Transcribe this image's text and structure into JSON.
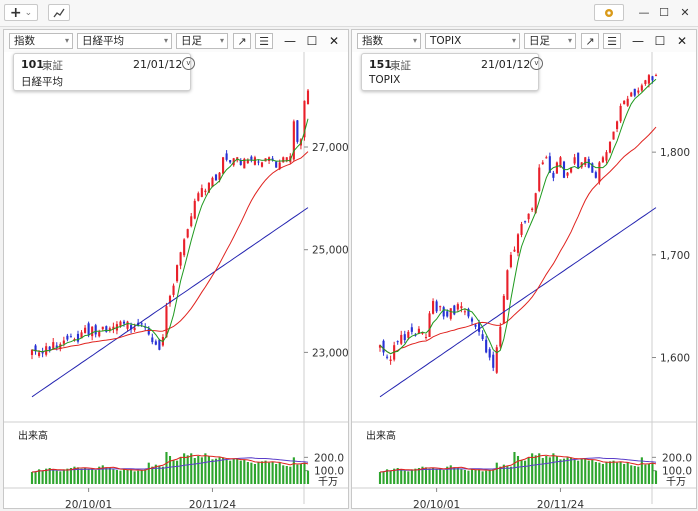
{
  "toolbar": {
    "add_label": "+",
    "add_arrow": "⌄",
    "chart_icon": "chart-line-icon",
    "settings_icon": "gear-icon",
    "minimize": "—",
    "maximize": "☐",
    "close": "✕"
  },
  "panels": [
    {
      "selectors": {
        "type": "指数",
        "symbol": "日経平均",
        "period": "日足"
      },
      "info": {
        "code": "101",
        "market": "東証",
        "date": "21/01/12",
        "name": "日経平均"
      },
      "volume_title": "出来高",
      "volume_unit": "千万",
      "chart_data": {
        "type": "candlestick",
        "y_ticks": [
          "27,000",
          "25,000",
          "23,000"
        ],
        "y_tick_values": [
          27000,
          25000,
          23000
        ],
        "volume_ticks": [
          "200.0",
          "100.0"
        ],
        "volume_tick_values": [
          200,
          100
        ],
        "x_ticks": [
          "20/10/01",
          "20/11/24"
        ],
        "price_range": [
          21800,
          28500
        ],
        "volume_max": 300,
        "colors": {
          "up": "#e8202a",
          "down": "#2731d4",
          "ma_short": "#1f9a1f",
          "ma_mid": "#e0231f",
          "ma_long": "#2323b0"
        },
        "close": [
          23050,
          23020,
          23000,
          22980,
          23120,
          23050,
          23200,
          23100,
          23160,
          23230,
          23250,
          23300,
          23260,
          23210,
          23390,
          23480,
          23330,
          23500,
          23350,
          23400,
          23500,
          23400,
          23470,
          23500,
          23550,
          23600,
          23560,
          23600,
          23450,
          23480,
          23520,
          23550,
          23480,
          23350,
          23200,
          23150,
          23050,
          23300,
          23900,
          24100,
          24300,
          24700,
          24950,
          25200,
          25400,
          25650,
          25950,
          26100,
          26200,
          26150,
          26300,
          26400,
          26350,
          26500,
          26800,
          26750,
          26700,
          26780,
          26800,
          26650,
          26770,
          26750,
          26750,
          26800,
          26700,
          26700,
          26780,
          26800,
          26750,
          26600,
          26700,
          26800,
          26800,
          26820,
          27500,
          27100,
          27150,
          27900,
          28100
        ],
        "volume": [
          90,
          95,
          110,
          100,
          115,
          120,
          105,
          100,
          95,
          110,
          115,
          120,
          130,
          125,
          115,
          120,
          110,
          115,
          105,
          130,
          140,
          125,
          120,
          110,
          105,
          100,
          115,
          105,
          110,
          95,
          100,
          105,
          110,
          160,
          130,
          145,
          135,
          130,
          240,
          210,
          180,
          175,
          200,
          230,
          215,
          230,
          195,
          210,
          200,
          230,
          210,
          185,
          190,
          200,
          200,
          180,
          175,
          190,
          195,
          175,
          180,
          165,
          160,
          150,
          165,
          170,
          175,
          160,
          165,
          150,
          160,
          140,
          135,
          130,
          200,
          145,
          150,
          160,
          100
        ]
      }
    },
    {
      "selectors": {
        "type": "指数",
        "symbol": "TOPIX",
        "period": "日足"
      },
      "info": {
        "code": "151",
        "market": "東証",
        "date": "21/01/12",
        "name": "TOPIX"
      },
      "volume_title": "出来高",
      "volume_unit": "千万",
      "chart_data": {
        "type": "candlestick",
        "y_ticks": [
          "1,800",
          "1,700",
          "1,600"
        ],
        "y_tick_values": [
          1800,
          1700,
          1600
        ],
        "volume_ticks": [
          "200.0",
          "100.0"
        ],
        "volume_tick_values": [
          200,
          100
        ],
        "x_ticks": [
          "20/10/01",
          "20/11/24"
        ],
        "price_range": [
          1545,
          1880
        ],
        "volume_max": 300,
        "colors": {
          "up": "#e8202a",
          "down": "#2731d4",
          "ma_short": "#1f9a1f",
          "ma_mid": "#e0231f",
          "ma_long": "#2323b0"
        },
        "close": [
          1612,
          1605,
          1600,
          1598,
          1612,
          1615,
          1622,
          1617,
          1625,
          1625,
          1622,
          1628,
          1624,
          1620,
          1643,
          1655,
          1645,
          1650,
          1640,
          1640,
          1648,
          1642,
          1652,
          1650,
          1645,
          1640,
          1635,
          1630,
          1625,
          1618,
          1605,
          1600,
          1590,
          1610,
          1630,
          1660,
          1685,
          1700,
          1705,
          1720,
          1730,
          1732,
          1740,
          1745,
          1760,
          1785,
          1790,
          1795,
          1780,
          1775,
          1790,
          1795,
          1775,
          1780,
          1785,
          1795,
          1785,
          1790,
          1795,
          1785,
          1780,
          1775,
          1790,
          1795,
          1800,
          1810,
          1820,
          1830,
          1845,
          1850,
          1852,
          1858,
          1855,
          1860,
          1865,
          1870,
          1875,
          1870,
          1875
        ],
        "volume": [
          90,
          95,
          110,
          100,
          115,
          120,
          105,
          100,
          95,
          110,
          115,
          120,
          130,
          125,
          115,
          120,
          110,
          115,
          105,
          130,
          140,
          125,
          120,
          110,
          105,
          100,
          115,
          105,
          110,
          95,
          100,
          105,
          110,
          160,
          130,
          145,
          135,
          130,
          240,
          210,
          180,
          175,
          200,
          230,
          215,
          230,
          195,
          210,
          200,
          230,
          210,
          185,
          190,
          200,
          200,
          180,
          175,
          190,
          195,
          175,
          180,
          165,
          160,
          150,
          165,
          170,
          175,
          160,
          165,
          150,
          160,
          140,
          135,
          130,
          200,
          145,
          150,
          160,
          100
        ]
      }
    }
  ]
}
